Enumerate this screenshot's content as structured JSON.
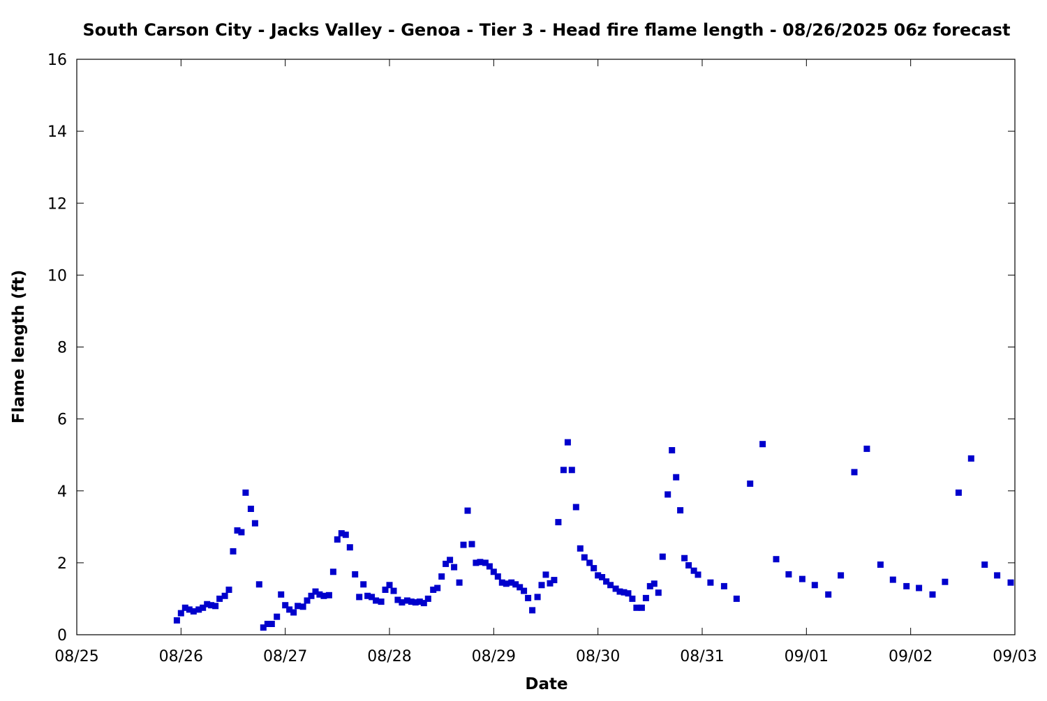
{
  "chart_data": {
    "type": "scatter",
    "title": "South Carson City - Jacks Valley - Genoa - Tier 3 - Head fire flame length - 08/26/2025 06z forecast",
    "xlabel": "Date",
    "ylabel": "Flame length (ft)",
    "x_unit": "days",
    "xlim": [
      0,
      9
    ],
    "ylim": [
      0,
      16
    ],
    "grid": false,
    "legend": "none",
    "colors": {
      "marker": "#0000cc",
      "axis": "#000000",
      "background": "#ffffff"
    },
    "x_ticks": [
      {
        "x": 0,
        "label": "08/25"
      },
      {
        "x": 1,
        "label": "08/26"
      },
      {
        "x": 2,
        "label": "08/27"
      },
      {
        "x": 3,
        "label": "08/28"
      },
      {
        "x": 4,
        "label": "08/29"
      },
      {
        "x": 5,
        "label": "08/30"
      },
      {
        "x": 6,
        "label": "08/31"
      },
      {
        "x": 7,
        "label": "09/01"
      },
      {
        "x": 8,
        "label": "09/02"
      },
      {
        "x": 9,
        "label": "09/03"
      }
    ],
    "y_ticks": [
      {
        "y": 0,
        "label": "0"
      },
      {
        "y": 2,
        "label": "2"
      },
      {
        "y": 4,
        "label": "4"
      },
      {
        "y": 6,
        "label": "6"
      },
      {
        "y": 8,
        "label": "8"
      },
      {
        "y": 10,
        "label": "10"
      },
      {
        "y": 12,
        "label": "12"
      },
      {
        "y": 14,
        "label": "14"
      },
      {
        "y": 16,
        "label": "16"
      }
    ],
    "series": [
      {
        "x": [
          0.96,
          1.0,
          1.04,
          1.08,
          1.12,
          1.17,
          1.21,
          1.25,
          1.29,
          1.33,
          1.37,
          1.42,
          1.46,
          1.5,
          1.54,
          1.58,
          1.62,
          1.67,
          1.71,
          1.75,
          1.79,
          1.83,
          1.87,
          1.92,
          1.96,
          2.0,
          2.04,
          2.08,
          2.12,
          2.17,
          2.21,
          2.25,
          2.29,
          2.33,
          2.37,
          2.42,
          2.46,
          2.5,
          2.54,
          2.58,
          2.62,
          2.67,
          2.71,
          2.75,
          2.79,
          2.83,
          2.87,
          2.92,
          2.96,
          3.0,
          3.04,
          3.08,
          3.12,
          3.17,
          3.21,
          3.25,
          3.29,
          3.33,
          3.37,
          3.42,
          3.46,
          3.5,
          3.54,
          3.58,
          3.62,
          3.67,
          3.71,
          3.75,
          3.79,
          3.83,
          3.87,
          3.92,
          3.96,
          4.0,
          4.04,
          4.08,
          4.12,
          4.17,
          4.21,
          4.25,
          4.29,
          4.33,
          4.37,
          4.42,
          4.46,
          4.5,
          4.54,
          4.58,
          4.62,
          4.67,
          4.71,
          4.75,
          4.79,
          4.83,
          4.87,
          4.92,
          4.96,
          5.0,
          5.04,
          5.08,
          5.12,
          5.17,
          5.21,
          5.25,
          5.29,
          5.33,
          5.37,
          5.42,
          5.46,
          5.5,
          5.54,
          5.58,
          5.62,
          5.67,
          5.71,
          5.75,
          5.79,
          5.83,
          5.87,
          5.92,
          5.96,
          6.08,
          6.21,
          6.33,
          6.46,
          6.58,
          6.71,
          6.83,
          6.96,
          7.08,
          7.21,
          7.33,
          7.46,
          7.58,
          7.71,
          7.83,
          7.96,
          8.08,
          8.21,
          8.33,
          8.46,
          8.58,
          8.71,
          8.83,
          8.96
        ],
        "y": [
          0.4,
          0.6,
          0.75,
          0.7,
          0.65,
          0.7,
          0.75,
          0.85,
          0.82,
          0.8,
          1.0,
          1.08,
          1.25,
          2.32,
          2.9,
          2.85,
          3.95,
          3.5,
          3.1,
          1.4,
          0.2,
          0.3,
          0.3,
          0.5,
          1.12,
          0.82,
          0.7,
          0.62,
          0.8,
          0.78,
          0.95,
          1.08,
          1.2,
          1.12,
          1.08,
          1.1,
          1.75,
          2.65,
          2.82,
          2.78,
          2.43,
          1.68,
          1.05,
          1.4,
          1.08,
          1.05,
          0.95,
          0.92,
          1.25,
          1.38,
          1.22,
          0.97,
          0.9,
          0.95,
          0.92,
          0.9,
          0.92,
          0.88,
          1.0,
          1.25,
          1.3,
          1.62,
          1.97,
          2.08,
          1.88,
          1.45,
          2.5,
          3.45,
          2.52,
          2.0,
          2.02,
          2.0,
          1.9,
          1.75,
          1.62,
          1.45,
          1.42,
          1.45,
          1.4,
          1.32,
          1.22,
          1.02,
          0.68,
          1.05,
          1.38,
          1.67,
          1.43,
          1.52,
          3.13,
          4.58,
          5.35,
          4.58,
          3.55,
          2.4,
          2.15,
          2.0,
          1.85,
          1.65,
          1.6,
          1.48,
          1.38,
          1.28,
          1.2,
          1.18,
          1.15,
          1.0,
          0.75,
          0.75,
          1.02,
          1.35,
          1.42,
          1.17,
          2.17,
          3.9,
          5.13,
          4.38,
          3.46,
          2.13,
          1.93,
          1.78,
          1.67,
          1.45,
          1.35,
          1.0,
          4.2,
          5.3,
          2.1,
          1.68,
          1.55,
          1.38,
          1.12,
          1.65,
          4.52,
          5.17,
          1.95,
          1.53,
          1.35,
          1.3,
          1.12,
          1.47,
          3.95,
          4.9,
          1.95,
          1.65,
          1.45
        ]
      }
    ]
  }
}
